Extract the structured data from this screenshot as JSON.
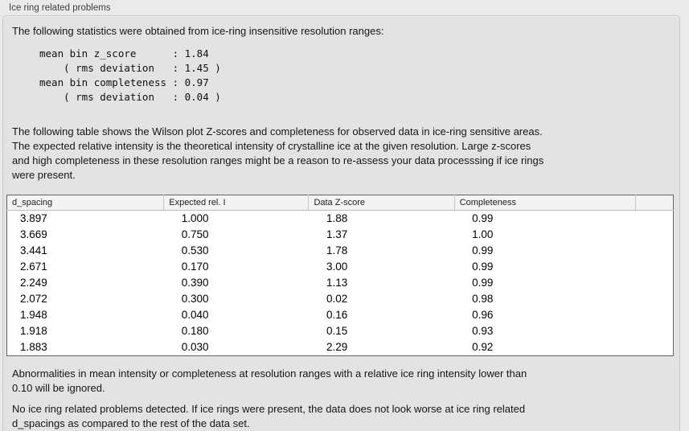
{
  "panel": {
    "title": "Ice ring related problems",
    "intro": "The following statistics were obtained from ice-ring insensitive resolution ranges:",
    "stats": "mean bin z_score      : 1.84\n    ( rms deviation   : 1.45 )\nmean bin completeness : 0.97\n    ( rms deviation   : 0.04 )",
    "description_lines": [
      "The following table shows the Wilson plot Z-scores and completeness for observed data in ice-ring sensitive areas.",
      "The expected relative intensity is the theoretical intensity of crystalline ice at the given resolution. Large z-scores",
      "and high completeness in these resolution ranges might be a reason to re-assess your data processsing if ice rings",
      "were present."
    ],
    "ignore_note_lines": [
      "Abnormalities in mean intensity or completeness at resolution ranges with a relative ice ring intensity lower than",
      "0.10 will be ignored."
    ],
    "conclusion_lines": [
      "No ice ring related problems detected. If ice rings were present, the data does not look worse at ice ring related",
      "d_spacings as compared to the rest of the data set."
    ]
  },
  "table": {
    "columns": [
      "d_spacing",
      "Expected rel. I",
      "Data Z-score",
      "Completeness"
    ],
    "rows": [
      [
        "3.897",
        "1.000",
        "1.88",
        "0.99"
      ],
      [
        "3.669",
        "0.750",
        "1.37",
        "1.00"
      ],
      [
        "3.441",
        "0.530",
        "1.78",
        "0.99"
      ],
      [
        "2.671",
        "0.170",
        "3.00",
        "0.99"
      ],
      [
        "2.249",
        "0.390",
        "1.13",
        "0.99"
      ],
      [
        "2.072",
        "0.300",
        "0.02",
        "0.98"
      ],
      [
        "1.948",
        "0.040",
        "0.16",
        "0.96"
      ],
      [
        "1.918",
        "0.180",
        "0.15",
        "0.93"
      ],
      [
        "1.883",
        "0.030",
        "2.29",
        "0.92"
      ]
    ]
  }
}
